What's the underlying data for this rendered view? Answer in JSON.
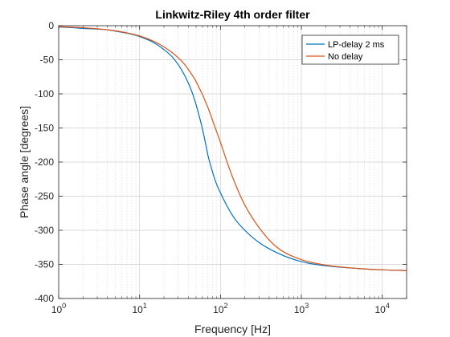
{
  "chart_data": {
    "type": "line",
    "title": "Linkwitz-Riley 4th order filter",
    "xlabel": "Frequency [Hz]",
    "ylabel": "Phase angle [degrees]",
    "xscale": "log",
    "xlim": [
      1,
      20000
    ],
    "ylim": [
      -400,
      0
    ],
    "xticks": [
      1,
      10,
      100,
      1000,
      10000
    ],
    "xtick_labels": [
      {
        "base": "10",
        "exp": "0"
      },
      {
        "base": "10",
        "exp": "1"
      },
      {
        "base": "10",
        "exp": "2"
      },
      {
        "base": "10",
        "exp": "3"
      },
      {
        "base": "10",
        "exp": "4"
      }
    ],
    "yticks": [
      0,
      -50,
      -100,
      -150,
      -200,
      -250,
      -300,
      -350,
      -400
    ],
    "ytick_labels": [
      "0",
      "-50",
      "-100",
      "-150",
      "-200",
      "-250",
      "-300",
      "-350",
      "-400"
    ],
    "grid": true,
    "minor_grid": true,
    "legend_position": "top-right",
    "series": [
      {
        "name": "LP-delay 2 ms",
        "color": "#0072BD",
        "x": [
          1,
          1.5,
          2,
          3,
          4,
          5,
          7,
          10,
          15,
          20,
          25,
          30,
          35,
          40,
          45,
          50,
          55,
          60,
          65,
          70,
          80,
          90,
          100,
          120,
          150,
          200,
          300,
          500,
          1000,
          2000,
          5000,
          10000,
          20000
        ],
        "y": [
          -2,
          -3,
          -4,
          -5,
          -6,
          -8,
          -11,
          -16,
          -25,
          -35,
          -45,
          -57,
          -70,
          -84,
          -99,
          -116,
          -134,
          -152,
          -171,
          -190,
          -215,
          -233,
          -245,
          -264,
          -283,
          -300,
          -318,
          -333,
          -346,
          -352,
          -356,
          -358,
          -359
        ]
      },
      {
        "name": "No delay",
        "color": "#D95319",
        "x": [
          1,
          1.5,
          2,
          3,
          4,
          5,
          7,
          10,
          15,
          20,
          25,
          30,
          35,
          40,
          45,
          50,
          55,
          60,
          65,
          70,
          80,
          90,
          100,
          120,
          150,
          200,
          300,
          500,
          1000,
          2000,
          5000,
          10000,
          20000
        ],
        "y": [
          -1.5,
          -2.3,
          -3,
          -4.6,
          -6,
          -7.5,
          -10.5,
          -15,
          -23,
          -31,
          -39,
          -47,
          -55,
          -64,
          -73,
          -82,
          -92,
          -101,
          -111,
          -120,
          -139,
          -156,
          -171,
          -199,
          -230,
          -263,
          -296,
          -325,
          -343,
          -351,
          -356,
          -358,
          -359
        ]
      }
    ]
  }
}
